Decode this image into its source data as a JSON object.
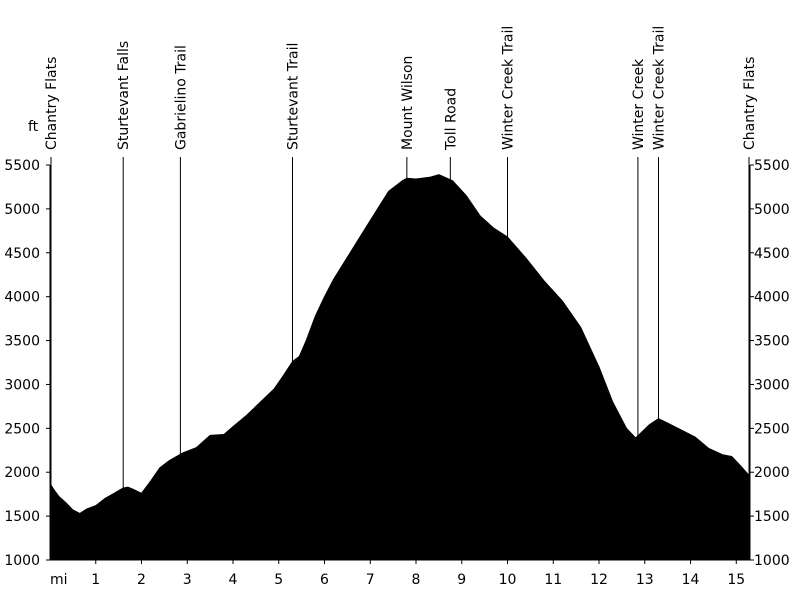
{
  "chart_data": {
    "type": "area",
    "title": "",
    "xlabel": "mi",
    "ylabel": "ft",
    "xlim": [
      0,
      15.3
    ],
    "ylim": [
      1000,
      5500
    ],
    "x_ticks": [
      1,
      2,
      3,
      4,
      5,
      6,
      7,
      8,
      9,
      10,
      11,
      12,
      13,
      14,
      15
    ],
    "y_ticks": [
      1000,
      1500,
      2000,
      2500,
      3000,
      3500,
      4000,
      4500,
      5000,
      5500
    ],
    "grid": false,
    "fill_color": "#000000",
    "series": [
      {
        "x": [
          0,
          0.1,
          0.2,
          0.35,
          0.5,
          0.65,
          0.8,
          1.0,
          1.2,
          1.4,
          1.6,
          1.7,
          1.8,
          2.0,
          2.2,
          2.4,
          2.6,
          2.9,
          3.2,
          3.5,
          3.8,
          4.0,
          4.3,
          4.6,
          4.9,
          5.1,
          5.3,
          5.45,
          5.6,
          5.8,
          6.0,
          6.2,
          6.5,
          6.8,
          7.1,
          7.4,
          7.7,
          7.8,
          8.0,
          8.3,
          8.5,
          8.8,
          9.1,
          9.4,
          9.7,
          10.0,
          10.4,
          10.8,
          11.2,
          11.6,
          12.0,
          12.3,
          12.6,
          12.8,
          12.9,
          13.1,
          13.3,
          13.5,
          13.8,
          14.1,
          14.4,
          14.7,
          14.9,
          15.1,
          15.3
        ],
        "y": [
          1870,
          1790,
          1720,
          1650,
          1570,
          1530,
          1580,
          1620,
          1700,
          1760,
          1820,
          1830,
          1810,
          1760,
          1900,
          2050,
          2130,
          2220,
          2280,
          2420,
          2430,
          2520,
          2650,
          2800,
          2950,
          3100,
          3260,
          3320,
          3500,
          3780,
          4000,
          4200,
          4450,
          4700,
          4950,
          5200,
          5320,
          5350,
          5340,
          5360,
          5390,
          5320,
          5150,
          4920,
          4780,
          4680,
          4440,
          4180,
          3950,
          3650,
          3200,
          2800,
          2500,
          2390,
          2440,
          2540,
          2610,
          2560,
          2480,
          2400,
          2270,
          2200,
          2180,
          2070,
          1950
        ]
      }
    ],
    "waypoints": [
      {
        "label": "Chantry Flats",
        "x": 0
      },
      {
        "label": "Sturtevant Falls",
        "x": 1.6
      },
      {
        "label": "Gabrielino Trail",
        "x": 2.85
      },
      {
        "label": "Sturtevant Trail",
        "x": 5.3
      },
      {
        "label": "Mount Wilson",
        "x": 7.8
      },
      {
        "label": "Toll Road",
        "x": 8.75
      },
      {
        "label": "Winter Creek Trail",
        "x": 10.0
      },
      {
        "label": "Winter Creek",
        "x": 12.85
      },
      {
        "label": "Winter Creek Trail",
        "x": 13.3
      },
      {
        "label": "Chantry Flats",
        "x": 15.3
      }
    ]
  }
}
